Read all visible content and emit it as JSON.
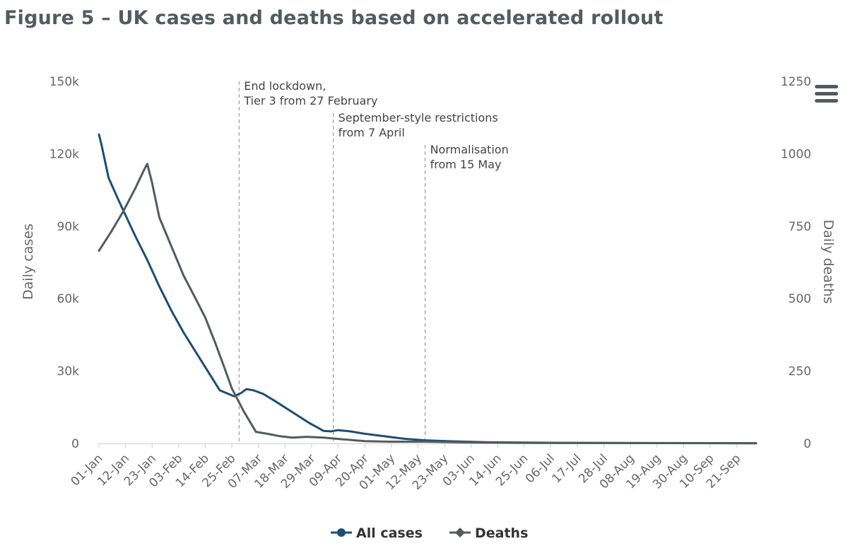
{
  "title": "Figure 5 – UK cases and deaths based on accelerated rollout",
  "menu": {
    "icon": "hamburger-menu-icon"
  },
  "chart_data": {
    "type": "line",
    "title": "Figure 5 – UK cases and deaths based on accelerated rollout",
    "x_start": "2021-01-01",
    "categories": [
      "01-Jan",
      "12-Jan",
      "23-Jan",
      "03-Feb",
      "14-Feb",
      "25-Feb",
      "07-Mar",
      "18-Mar",
      "29-Mar",
      "09-Apr",
      "20-Apr",
      "01-May",
      "12-May",
      "23-May",
      "03-Jun",
      "14-Jun",
      "25-Jun",
      "06-Jul",
      "17-Jul",
      "28-Jul",
      "08-Aug",
      "19-Aug",
      "30-Aug",
      "10-Sep",
      "21-Sep"
    ],
    "x_day_max": 272,
    "y_left": {
      "label": "Daily cases",
      "min": 0,
      "max": 150000,
      "ticks": [
        0,
        30000,
        60000,
        90000,
        120000,
        150000
      ],
      "tick_labels": [
        "0",
        "30k",
        "60k",
        "90k",
        "120k",
        "150k"
      ]
    },
    "y_right": {
      "label": "Daily deaths",
      "min": 0,
      "max": 1250,
      "ticks": [
        0,
        250,
        500,
        750,
        1000,
        1250
      ],
      "tick_labels": [
        "0",
        "250",
        "500",
        "750",
        "1000",
        "1250"
      ]
    },
    "grid": false,
    "legend_position": "bottom",
    "series": [
      {
        "name": "All cases",
        "axis": "left",
        "color": "#1d4e74",
        "marker": "circle",
        "points": [
          [
            0,
            128000
          ],
          [
            1,
            124000
          ],
          [
            4,
            110000
          ],
          [
            8,
            101000
          ],
          [
            15,
            86000
          ],
          [
            20,
            76000
          ],
          [
            25,
            65000
          ],
          [
            30,
            55000
          ],
          [
            35,
            46000
          ],
          [
            40,
            38000
          ],
          [
            45,
            30000
          ],
          [
            50,
            22000
          ],
          [
            56,
            19500
          ],
          [
            59,
            21000
          ],
          [
            61,
            22500
          ],
          [
            64,
            22000
          ],
          [
            68,
            20500
          ],
          [
            73,
            17500
          ],
          [
            80,
            13000
          ],
          [
            87,
            8500
          ],
          [
            93,
            5200
          ],
          [
            96,
            5000
          ],
          [
            99,
            5500
          ],
          [
            104,
            5000
          ],
          [
            110,
            4000
          ],
          [
            118,
            3000
          ],
          [
            126,
            2000
          ],
          [
            135,
            1300
          ],
          [
            145,
            900
          ],
          [
            160,
            500
          ],
          [
            190,
            250
          ],
          [
            230,
            150
          ],
          [
            272,
            100
          ]
        ]
      },
      {
        "name": "Deaths",
        "axis": "right",
        "color": "#555a5e",
        "marker": "diamond",
        "points": [
          [
            0,
            665
          ],
          [
            5,
            730
          ],
          [
            10,
            800
          ],
          [
            15,
            880
          ],
          [
            19,
            950
          ],
          [
            20,
            965
          ],
          [
            22,
            900
          ],
          [
            25,
            780
          ],
          [
            30,
            680
          ],
          [
            35,
            580
          ],
          [
            40,
            500
          ],
          [
            44,
            435
          ],
          [
            48,
            350
          ],
          [
            52,
            260
          ],
          [
            55,
            190
          ],
          [
            60,
            110
          ],
          [
            65,
            40
          ],
          [
            70,
            33
          ],
          [
            75,
            25
          ],
          [
            80,
            20
          ],
          [
            86,
            23
          ],
          [
            93,
            20
          ],
          [
            100,
            15
          ],
          [
            110,
            8
          ],
          [
            120,
            6
          ],
          [
            135,
            6
          ],
          [
            150,
            4
          ],
          [
            180,
            2
          ],
          [
            272,
            1
          ]
        ]
      }
    ],
    "annotations": [
      {
        "day": 58,
        "lines": [
          "End lockdown,",
          "Tier 3 from 27 February"
        ]
      },
      {
        "day": 97,
        "lines": [
          "September-style restrictions",
          "from 7 April"
        ]
      },
      {
        "day": 135,
        "lines": [
          "Normalisation",
          "from 15 May"
        ]
      }
    ]
  }
}
